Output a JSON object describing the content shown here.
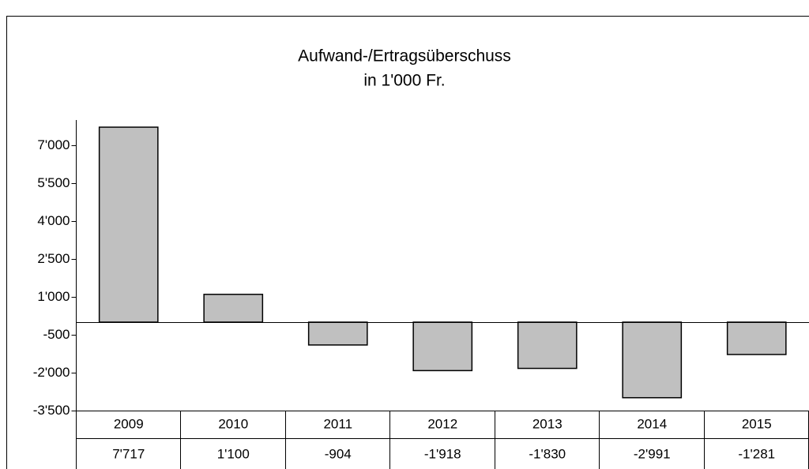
{
  "chart_data": {
    "type": "bar",
    "title": "Aufwand-/Ertragsüberschuss",
    "subtitle": "in 1'000 Fr.",
    "categories": [
      "2009",
      "2010",
      "2011",
      "2012",
      "2013",
      "2014",
      "2015"
    ],
    "values": [
      7717,
      1100,
      -904,
      -1918,
      -1830,
      -2991,
      -1281
    ],
    "value_labels": [
      "7'717",
      "1'100",
      "-904",
      "-1'918",
      "-1'830",
      "-2'991",
      "-1'281"
    ],
    "color": "#c0c0c0",
    "ylim": [
      -3500,
      8000
    ],
    "yticks": [
      {
        "value": 7000,
        "label": "7'000"
      },
      {
        "value": 5500,
        "label": "5'500"
      },
      {
        "value": 4000,
        "label": "4'000"
      },
      {
        "value": 2500,
        "label": "2'500"
      },
      {
        "value": 1000,
        "label": "1'000"
      },
      {
        "value": -500,
        "label": "-500"
      },
      {
        "value": -2000,
        "label": "-2'000"
      },
      {
        "value": -3500,
        "label": "-3'500"
      }
    ]
  }
}
